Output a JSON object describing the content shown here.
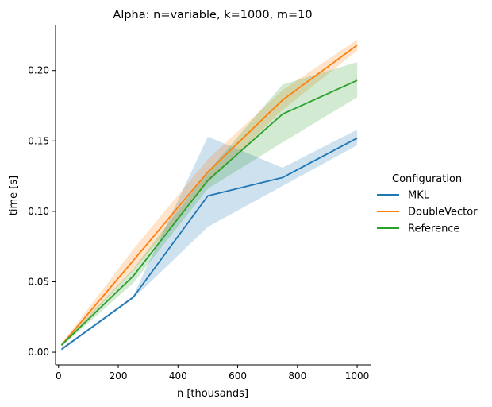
{
  "chart_data": {
    "type": "line",
    "title": "Alpha: n=variable, k=1000, m=10",
    "xlabel": "n [thousands]",
    "ylabel": "time [s]",
    "xlim": [
      -10,
      1045
    ],
    "ylim": [
      -0.009,
      0.232
    ],
    "xticks": [
      0,
      200,
      400,
      600,
      800,
      1000
    ],
    "xtick_labels": [
      "0",
      "200",
      "400",
      "600",
      "800",
      "1000"
    ],
    "yticks": [
      0.0,
      0.05,
      0.1,
      0.15,
      0.2
    ],
    "ytick_labels": [
      "0.00",
      "0.05",
      "0.10",
      "0.15",
      "0.20"
    ],
    "grid": false,
    "legend": {
      "title": "Configuration",
      "placement": "center-right, outside"
    },
    "x": [
      10,
      250,
      500,
      750,
      1000
    ],
    "series": [
      {
        "name": "MKL",
        "color": "#1f77b4",
        "values": [
          0.002,
          0.039,
          0.111,
          0.124,
          0.152
        ],
        "ci_low": [
          0.001,
          0.038,
          0.089,
          0.118,
          0.147
        ],
        "ci_high": [
          0.003,
          0.04,
          0.153,
          0.131,
          0.158
        ]
      },
      {
        "name": "DoubleVector",
        "color": "#ff7f0e",
        "values": [
          0.005,
          0.065,
          0.128,
          0.179,
          0.218
        ],
        "ci_low": [
          0.004,
          0.058,
          0.12,
          0.172,
          0.214
        ],
        "ci_high": [
          0.006,
          0.073,
          0.137,
          0.186,
          0.222
        ]
      },
      {
        "name": "Reference",
        "color": "#2ca02c",
        "values": [
          0.005,
          0.054,
          0.122,
          0.169,
          0.193
        ],
        "ci_low": [
          0.004,
          0.049,
          0.116,
          0.149,
          0.181
        ],
        "ci_high": [
          0.006,
          0.059,
          0.128,
          0.19,
          0.206
        ]
      }
    ]
  }
}
